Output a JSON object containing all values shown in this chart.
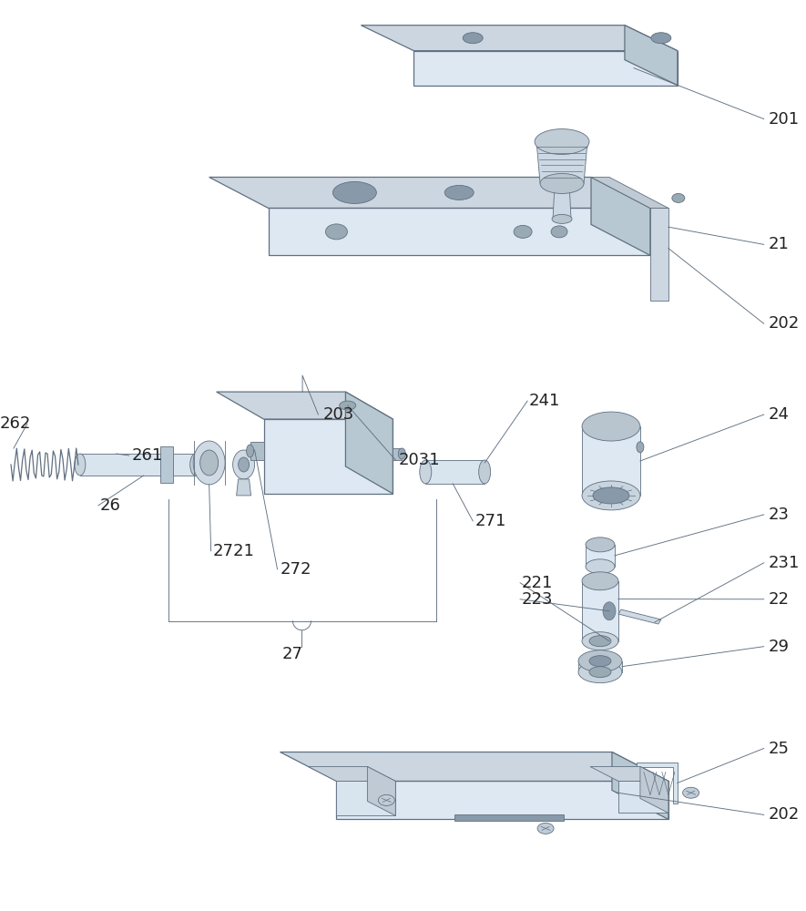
{
  "bg": "#ffffff",
  "lc": "#607080",
  "lw": 0.9,
  "tlw": 0.6,
  "fc_main": "#dde8f2",
  "fc_top": "#ccd6e0",
  "fc_side": "#b8c8d2",
  "label_fs": 13
}
